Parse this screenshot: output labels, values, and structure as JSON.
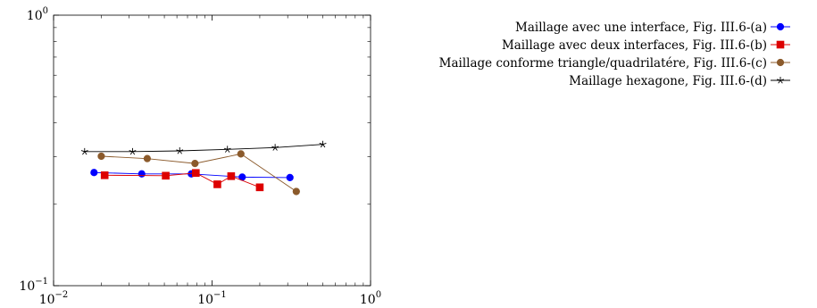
{
  "chart_data": {
    "type": "line",
    "xscale": "log",
    "yscale": "log",
    "xlim": [
      0.01,
      1
    ],
    "ylim": [
      0.1,
      1
    ],
    "x_ticks": [
      {
        "value": 0.01,
        "label_base": "10",
        "label_exp": "−2"
      },
      {
        "value": 0.1,
        "label_base": "10",
        "label_exp": "−1"
      },
      {
        "value": 1,
        "label_base": "10",
        "label_exp": "0"
      }
    ],
    "y_ticks": [
      {
        "value": 0.1,
        "label_base": "10",
        "label_exp": "−1"
      },
      {
        "value": 1,
        "label_base": "10",
        "label_exp": "0"
      }
    ],
    "grid": false,
    "legend_position": "outside-right-top",
    "series": [
      {
        "name": "Maillage avec une interface, Fig. III.6-(a)",
        "color": "#0000ff",
        "marker": "circle",
        "x": [
          0.018,
          0.036,
          0.074,
          0.155,
          0.31
        ],
        "y": [
          0.262,
          0.259,
          0.259,
          0.252,
          0.251
        ]
      },
      {
        "name": "Maillage avec deux interfaces, Fig. III.6-(b)",
        "color": "#dd0000",
        "marker": "square",
        "x": [
          0.021,
          0.051,
          0.079,
          0.108,
          0.132,
          0.2
        ],
        "y": [
          0.256,
          0.255,
          0.261,
          0.237,
          0.254,
          0.231
        ]
      },
      {
        "name": "Maillage conforme triangle/quadrilatére, Fig. III.6-(c)",
        "color": "#8b5a2b",
        "marker": "circle",
        "x": [
          0.02,
          0.039,
          0.078,
          0.152,
          0.34
        ],
        "y": [
          0.301,
          0.295,
          0.283,
          0.307,
          0.223
        ]
      },
      {
        "name": "Maillage hexagone, Fig. III.6-(d)",
        "color": "#000000",
        "marker": "star",
        "x": [
          0.0157,
          0.0315,
          0.0625,
          0.125,
          0.25,
          0.5
        ],
        "y": [
          0.313,
          0.313,
          0.315,
          0.319,
          0.324,
          0.333
        ]
      }
    ]
  }
}
